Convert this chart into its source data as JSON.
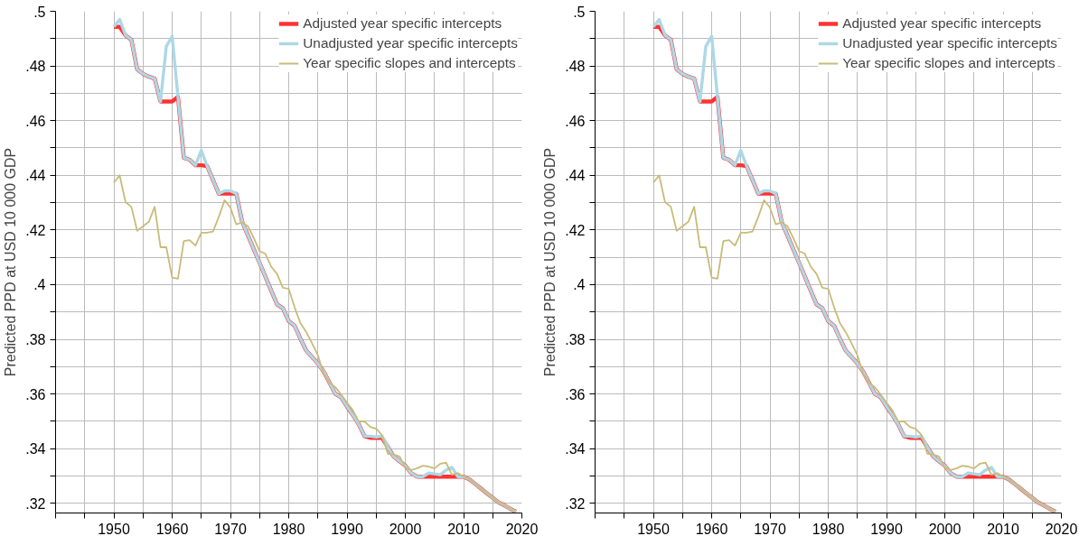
{
  "chart_data": [
    {
      "type": "line",
      "ylabel": "Predicted PPD at USD 10 000 GDP",
      "legend": "top right",
      "grid": true,
      "line_style": "solid",
      "x": [
        1950,
        1951,
        1952,
        1953,
        1954,
        1955,
        1956,
        1957,
        1958,
        1959,
        1960,
        1961,
        1962,
        1963,
        1964,
        1965,
        1966,
        1967,
        1968,
        1969,
        1970,
        1971,
        1972,
        1973,
        1974,
        1975,
        1976,
        1977,
        1978,
        1979,
        1980,
        1981,
        1982,
        1983,
        1984,
        1985,
        1986,
        1987,
        1988,
        1989,
        1990,
        1991,
        1992,
        1993,
        1994,
        1995,
        1996,
        1997,
        1998,
        1999,
        2000,
        2001,
        2002,
        2003,
        2004,
        2005,
        2006,
        2007,
        2008,
        2009,
        2010,
        2011,
        2012,
        2013,
        2014,
        2015,
        2016,
        2017,
        2018,
        2019
      ],
      "xlim": [
        1940,
        2020
      ],
      "xticks": [
        {
          "value": 1940,
          "label": null
        },
        {
          "value": 1945,
          "label": null
        },
        1950,
        {
          "value": 1955,
          "label": null
        },
        1960,
        {
          "value": 1965,
          "label": null
        },
        1970,
        {
          "value": 1975,
          "label": null
        },
        1980,
        {
          "value": 1985,
          "label": null
        },
        1990,
        {
          "value": 1995,
          "label": null
        },
        2000,
        {
          "value": 2005,
          "label": null
        },
        2010,
        {
          "value": 2015,
          "label": null
        },
        2020
      ],
      "ylim": [
        0.3165,
        0.5
      ],
      "yticks": [
        {
          "value": 0.32,
          "label": ".32"
        },
        {
          "value": 0.33,
          "label": null
        },
        {
          "value": 0.34,
          "label": ".34"
        },
        {
          "value": 0.35,
          "label": null
        },
        {
          "value": 0.36,
          "label": ".36"
        },
        {
          "value": 0.37,
          "label": null
        },
        {
          "value": 0.38,
          "label": ".38"
        },
        {
          "value": 0.39,
          "label": null
        },
        {
          "value": 0.4,
          "label": ".4"
        },
        {
          "value": 0.41,
          "label": null
        },
        {
          "value": 0.42,
          "label": ".42"
        },
        {
          "value": 0.43,
          "label": null
        },
        {
          "value": 0.44,
          "label": ".44"
        },
        {
          "value": 0.45,
          "label": null
        },
        {
          "value": 0.46,
          "label": ".46"
        },
        {
          "value": 0.47,
          "label": null
        },
        {
          "value": 0.48,
          "label": ".48"
        },
        {
          "value": 0.49,
          "label": null
        },
        {
          "value": 0.5,
          "label": ".5"
        }
      ],
      "series": [
        {
          "name": "Adjusted year specific intercepts",
          "color": "#ff3333",
          "values": [
            0.4943,
            0.4943,
            0.4912,
            0.4896,
            0.4788,
            0.4771,
            0.4761,
            0.4754,
            0.467,
            0.467,
            0.467,
            0.4687,
            0.4464,
            0.4457,
            0.4437,
            0.4437,
            0.4434,
            0.4383,
            0.4333,
            0.4333,
            0.4333,
            0.4333,
            0.4231,
            0.418,
            0.413,
            0.408,
            0.4029,
            0.3978,
            0.3928,
            0.3914,
            0.3867,
            0.385,
            0.3803,
            0.3759,
            0.3736,
            0.3712,
            0.3682,
            0.3642,
            0.3601,
            0.3588,
            0.3554,
            0.3524,
            0.349,
            0.3446,
            0.344,
            0.344,
            0.344,
            0.3406,
            0.3372,
            0.3355,
            0.3338,
            0.3311,
            0.3298,
            0.3298,
            0.3298,
            0.3298,
            0.3298,
            0.3298,
            0.3298,
            0.3298,
            0.3298,
            0.3288,
            0.3271,
            0.3254,
            0.3237,
            0.322,
            0.3204,
            0.3193,
            0.318,
            0.317
          ]
        },
        {
          "name": "Unadjusted year specific intercepts",
          "color": "#add8e6",
          "values": [
            0.4943,
            0.497,
            0.4912,
            0.4896,
            0.4788,
            0.4771,
            0.4761,
            0.4754,
            0.467,
            0.4872,
            0.4909,
            0.4687,
            0.4464,
            0.4457,
            0.4437,
            0.4491,
            0.4434,
            0.4383,
            0.4333,
            0.4343,
            0.4343,
            0.4333,
            0.4231,
            0.418,
            0.413,
            0.408,
            0.4029,
            0.3978,
            0.3928,
            0.3914,
            0.3867,
            0.385,
            0.3803,
            0.3759,
            0.3736,
            0.3712,
            0.3682,
            0.3642,
            0.3601,
            0.3588,
            0.3554,
            0.3524,
            0.349,
            0.3446,
            0.3446,
            0.3443,
            0.3446,
            0.3406,
            0.3372,
            0.3355,
            0.3338,
            0.3311,
            0.3298,
            0.3298,
            0.3311,
            0.3308,
            0.3305,
            0.3322,
            0.3332,
            0.3298,
            0.3298,
            0.3288,
            0.3271,
            0.3254,
            0.3237,
            0.322,
            0.3204,
            0.3193,
            0.318,
            0.317
          ]
        },
        {
          "name": "Year specific slopes and intercepts",
          "color": "#c8bc78",
          "values": [
            0.4373,
            0.44,
            0.4302,
            0.4285,
            0.4197,
            0.4214,
            0.423,
            0.4285,
            0.4137,
            0.4137,
            0.4026,
            0.4022,
            0.416,
            0.4163,
            0.4143,
            0.419,
            0.419,
            0.4194,
            0.4248,
            0.4309,
            0.4282,
            0.4221,
            0.4228,
            0.4214,
            0.4171,
            0.4123,
            0.4113,
            0.4066,
            0.4039,
            0.3989,
            0.3985,
            0.3918,
            0.386,
            0.3827,
            0.3786,
            0.3742,
            0.3675,
            0.3642,
            0.3625,
            0.3598,
            0.3568,
            0.3541,
            0.35,
            0.35,
            0.348,
            0.3473,
            0.345,
            0.3382,
            0.3379,
            0.3372,
            0.3332,
            0.3322,
            0.3328,
            0.3338,
            0.3335,
            0.3328,
            0.3345,
            0.3349,
            0.3305,
            0.3311,
            0.3298,
            0.3288,
            0.3271,
            0.3254,
            0.3237,
            0.322,
            0.3204,
            0.3193,
            0.318,
            0.317
          ]
        }
      ]
    },
    {
      "type": "line",
      "ylabel": "Predicted PPD at USD 10 000 GDP",
      "legend": "top right",
      "grid": true,
      "line_style": "solid",
      "x": [
        1950,
        1951,
        1952,
        1953,
        1954,
        1955,
        1956,
        1957,
        1958,
        1959,
        1960,
        1961,
        1962,
        1963,
        1964,
        1965,
        1966,
        1967,
        1968,
        1969,
        1970,
        1971,
        1972,
        1973,
        1974,
        1975,
        1976,
        1977,
        1978,
        1979,
        1980,
        1981,
        1982,
        1983,
        1984,
        1985,
        1986,
        1987,
        1988,
        1989,
        1990,
        1991,
        1992,
        1993,
        1994,
        1995,
        1996,
        1997,
        1998,
        1999,
        2000,
        2001,
        2002,
        2003,
        2004,
        2005,
        2006,
        2007,
        2008,
        2009,
        2010,
        2011,
        2012,
        2013,
        2014,
        2015,
        2016,
        2017,
        2018,
        2019
      ],
      "xlim": [
        1940,
        2020
      ],
      "xticks": [
        {
          "value": 1940,
          "label": null
        },
        {
          "value": 1945,
          "label": null
        },
        1950,
        {
          "value": 1955,
          "label": null
        },
        1960,
        {
          "value": 1965,
          "label": null
        },
        1970,
        {
          "value": 1975,
          "label": null
        },
        1980,
        {
          "value": 1985,
          "label": null
        },
        1990,
        {
          "value": 1995,
          "label": null
        },
        2000,
        {
          "value": 2005,
          "label": null
        },
        2010,
        {
          "value": 2015,
          "label": null
        },
        2020
      ],
      "ylim": [
        0.3165,
        0.5
      ],
      "yticks": [
        {
          "value": 0.32,
          "label": ".32"
        },
        {
          "value": 0.33,
          "label": null
        },
        {
          "value": 0.34,
          "label": ".34"
        },
        {
          "value": 0.35,
          "label": null
        },
        {
          "value": 0.36,
          "label": ".36"
        },
        {
          "value": 0.37,
          "label": null
        },
        {
          "value": 0.38,
          "label": ".38"
        },
        {
          "value": 0.39,
          "label": null
        },
        {
          "value": 0.4,
          "label": ".4"
        },
        {
          "value": 0.41,
          "label": null
        },
        {
          "value": 0.42,
          "label": ".42"
        },
        {
          "value": 0.43,
          "label": null
        },
        {
          "value": 0.44,
          "label": ".44"
        },
        {
          "value": 0.45,
          "label": null
        },
        {
          "value": 0.46,
          "label": ".46"
        },
        {
          "value": 0.47,
          "label": null
        },
        {
          "value": 0.48,
          "label": ".48"
        },
        {
          "value": 0.49,
          "label": null
        },
        {
          "value": 0.5,
          "label": ".5"
        }
      ],
      "series": [
        {
          "name": "Adjusted year specific intercepts",
          "color": "#ff3333",
          "values": [
            0.4943,
            0.4943,
            0.4912,
            0.4896,
            0.4788,
            0.4771,
            0.4761,
            0.4754,
            0.467,
            0.467,
            0.467,
            0.4687,
            0.4464,
            0.4457,
            0.4437,
            0.4437,
            0.4434,
            0.4383,
            0.4333,
            0.4333,
            0.4333,
            0.4333,
            0.4231,
            0.418,
            0.413,
            0.408,
            0.4029,
            0.3978,
            0.3928,
            0.3914,
            0.3867,
            0.385,
            0.3803,
            0.3759,
            0.3736,
            0.3712,
            0.3682,
            0.3642,
            0.3601,
            0.3588,
            0.3554,
            0.3524,
            0.349,
            0.3446,
            0.344,
            0.344,
            0.344,
            0.3406,
            0.3372,
            0.3355,
            0.3338,
            0.3311,
            0.3298,
            0.3298,
            0.3298,
            0.3298,
            0.3298,
            0.3298,
            0.3298,
            0.3298,
            0.3298,
            0.3288,
            0.3271,
            0.3254,
            0.3237,
            0.322,
            0.3204,
            0.3193,
            0.318,
            0.317
          ]
        },
        {
          "name": "Unadjusted year specific intercepts",
          "color": "#add8e6",
          "values": [
            0.4943,
            0.497,
            0.4912,
            0.4896,
            0.4788,
            0.4771,
            0.4761,
            0.4754,
            0.467,
            0.4872,
            0.4909,
            0.4687,
            0.4464,
            0.4457,
            0.4437,
            0.4491,
            0.4434,
            0.4383,
            0.4333,
            0.4343,
            0.4343,
            0.4333,
            0.4231,
            0.418,
            0.413,
            0.408,
            0.4029,
            0.3978,
            0.3928,
            0.3914,
            0.3867,
            0.385,
            0.3803,
            0.3759,
            0.3736,
            0.3712,
            0.3682,
            0.3642,
            0.3601,
            0.3588,
            0.3554,
            0.3524,
            0.349,
            0.3446,
            0.3446,
            0.3443,
            0.3446,
            0.3406,
            0.3372,
            0.3355,
            0.3338,
            0.3311,
            0.3298,
            0.3298,
            0.3311,
            0.3308,
            0.3305,
            0.3322,
            0.3332,
            0.3298,
            0.3298,
            0.3288,
            0.3271,
            0.3254,
            0.3237,
            0.322,
            0.3204,
            0.3193,
            0.318,
            0.317
          ]
        },
        {
          "name": "Year specific slopes and intercepts",
          "color": "#c8bc78",
          "values": [
            0.4373,
            0.44,
            0.4302,
            0.4285,
            0.4197,
            0.4214,
            0.423,
            0.4285,
            0.4137,
            0.4137,
            0.4026,
            0.4022,
            0.416,
            0.4163,
            0.4143,
            0.419,
            0.419,
            0.4194,
            0.4248,
            0.4309,
            0.4282,
            0.4221,
            0.4228,
            0.4214,
            0.4171,
            0.4123,
            0.4113,
            0.4066,
            0.4039,
            0.3989,
            0.3985,
            0.3918,
            0.386,
            0.3827,
            0.3786,
            0.3742,
            0.3675,
            0.3642,
            0.3625,
            0.3598,
            0.3568,
            0.3541,
            0.35,
            0.35,
            0.348,
            0.3473,
            0.345,
            0.3382,
            0.3379,
            0.3372,
            0.3332,
            0.3322,
            0.3328,
            0.3338,
            0.3335,
            0.3328,
            0.3345,
            0.3349,
            0.3305,
            0.3311,
            0.3298,
            0.3288,
            0.3271,
            0.3254,
            0.3237,
            0.322,
            0.3204,
            0.3193,
            0.318,
            0.317
          ]
        }
      ]
    }
  ]
}
